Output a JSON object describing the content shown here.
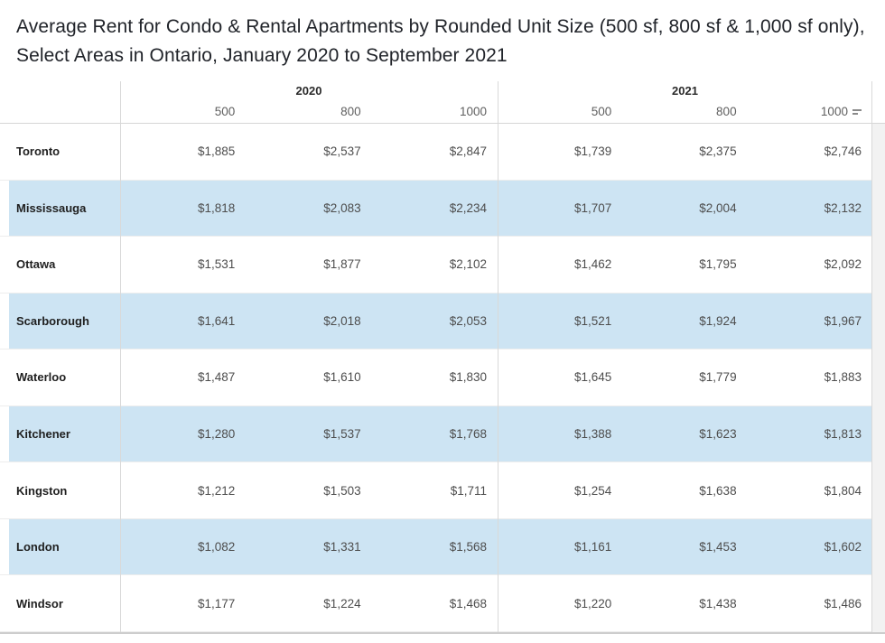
{
  "title": "Average Rent for Condo & Rental Apartments by Rounded Unit Size (500 sf, 800 sf & 1,000 sf only), Select Areas in Ontario, January 2020 to September 2021",
  "colors": {
    "band_blue": "#cde4f3",
    "grid_gray": "#d9d9d9",
    "value_text": "#4d4d4d",
    "header_text": "#5f5f5f"
  },
  "icons": {
    "sort": "sort-icon"
  },
  "chart_data": {
    "type": "table",
    "title": "Average Rent for Condo & Rental Apartments by Rounded Unit Size (500 sf, 800 sf & 1,000 sf only), Select Areas in Ontario, January 2020 to September 2021",
    "column_groups": [
      "2020",
      "2021"
    ],
    "sub_columns": [
      "500",
      "800",
      "1000"
    ],
    "row_header": "",
    "rows": [
      {
        "area": "Toronto",
        "values": [
          "$1,885",
          "$2,537",
          "$2,847",
          "$1,739",
          "$2,375",
          "$2,746"
        ]
      },
      {
        "area": "Mississauga",
        "values": [
          "$1,818",
          "$2,083",
          "$2,234",
          "$1,707",
          "$2,004",
          "$2,132"
        ]
      },
      {
        "area": "Ottawa",
        "values": [
          "$1,531",
          "$1,877",
          "$2,102",
          "$1,462",
          "$1,795",
          "$2,092"
        ]
      },
      {
        "area": "Scarborough",
        "values": [
          "$1,641",
          "$2,018",
          "$2,053",
          "$1,521",
          "$1,924",
          "$1,967"
        ]
      },
      {
        "area": "Waterloo",
        "values": [
          "$1,487",
          "$1,610",
          "$1,830",
          "$1,645",
          "$1,779",
          "$1,883"
        ]
      },
      {
        "area": "Kitchener",
        "values": [
          "$1,280",
          "$1,537",
          "$1,768",
          "$1,388",
          "$1,623",
          "$1,813"
        ]
      },
      {
        "area": "Kingston",
        "values": [
          "$1,212",
          "$1,503",
          "$1,711",
          "$1,254",
          "$1,638",
          "$1,804"
        ]
      },
      {
        "area": "London",
        "values": [
          "$1,082",
          "$1,331",
          "$1,568",
          "$1,161",
          "$1,453",
          "$1,602"
        ]
      },
      {
        "area": "Windsor",
        "values": [
          "$1,177",
          "$1,224",
          "$1,468",
          "$1,220",
          "$1,438",
          "$1,486"
        ]
      }
    ],
    "banded_rows": [
      1,
      3,
      5,
      7
    ],
    "legend_position": "none",
    "grid": "light"
  }
}
